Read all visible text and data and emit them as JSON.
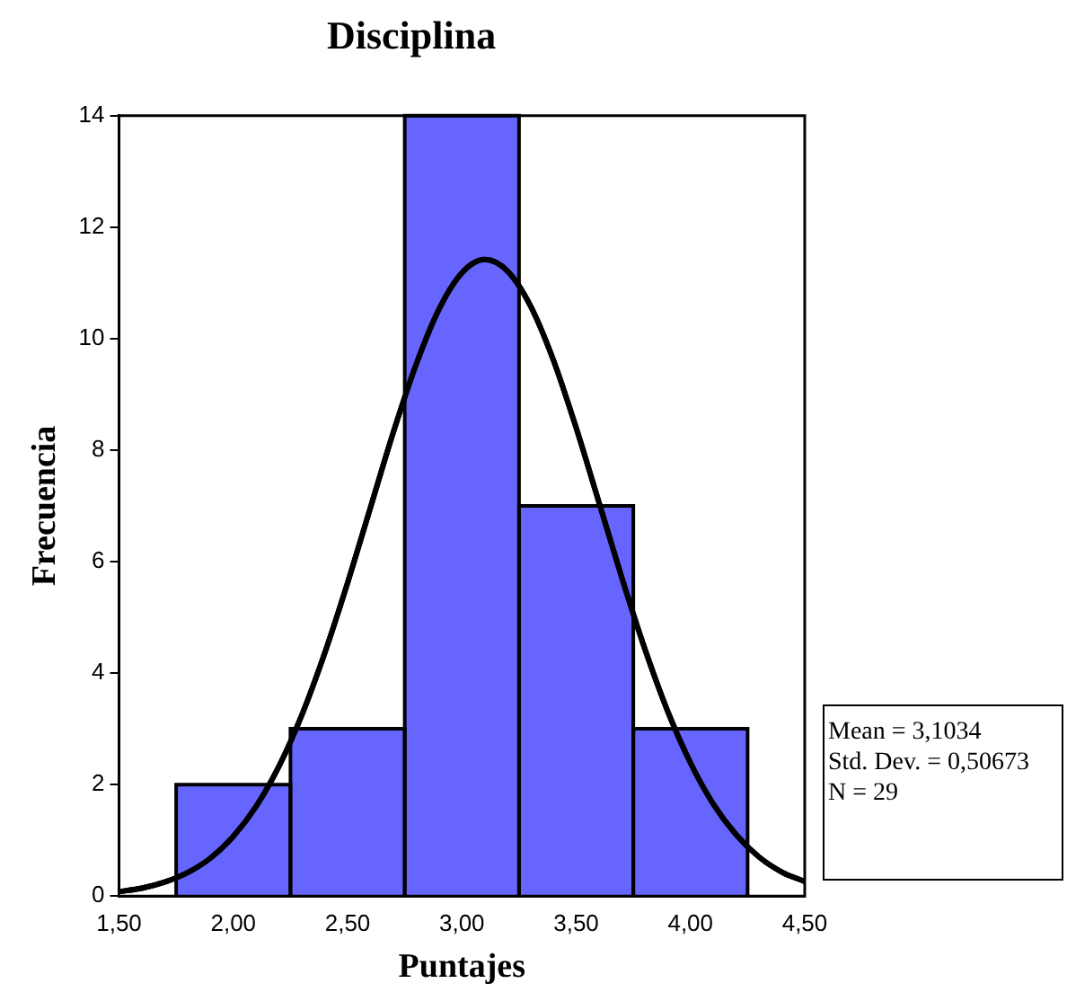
{
  "chart_data": {
    "type": "histogram",
    "title": "Disciplina",
    "xlabel": "Puntajes",
    "ylabel": "Frecuencia",
    "bins": [
      1.75,
      2.25,
      2.75,
      3.25,
      3.75,
      4.25
    ],
    "values": [
      2,
      3,
      14,
      7,
      3
    ],
    "color": "#6666ff",
    "series": [
      {
        "type": "line",
        "color": "#000000",
        "x": [
          1.5,
          1.6,
          1.7,
          1.8,
          1.9,
          2.0,
          2.1,
          2.2,
          2.3,
          2.4,
          2.5,
          2.6,
          2.7,
          2.8,
          2.9,
          3.0,
          3.1,
          3.2,
          3.3,
          3.4,
          3.5,
          3.6,
          3.7,
          3.8,
          3.9,
          4.0,
          4.1,
          4.2,
          4.3,
          4.4,
          4.5
        ],
        "values": [
          0.08,
          0.14,
          0.25,
          0.42,
          0.68,
          1.07,
          1.61,
          2.33,
          3.25,
          4.36,
          5.62,
          6.97,
          8.32,
          9.54,
          10.53,
          11.18,
          11.42,
          11.21,
          10.59,
          9.62,
          8.4,
          7.06,
          5.71,
          4.44,
          3.32,
          2.39,
          1.65,
          1.1,
          0.7,
          0.43,
          0.26
        ]
      }
    ],
    "xlim": [
      1.5,
      4.5
    ],
    "xticks": [
      {
        "value": 1.5,
        "label": "1,50"
      },
      {
        "value": 2,
        "label": "2,00"
      },
      {
        "value": 2.5,
        "label": "2,50"
      },
      {
        "value": 3,
        "label": "3,00"
      },
      {
        "value": 3.5,
        "label": "3,50"
      },
      {
        "value": 4,
        "label": "4,00"
      },
      {
        "value": 4.5,
        "label": "4,50"
      }
    ],
    "ylim": [
      0,
      14
    ],
    "yticks": [
      0,
      2,
      4,
      6,
      8,
      10,
      12,
      14
    ],
    "grid": false,
    "legend": false,
    "annotations": [
      "Mean = 3,1034",
      "Std. Dev. = 0,50673",
      "N = 29"
    ]
  }
}
